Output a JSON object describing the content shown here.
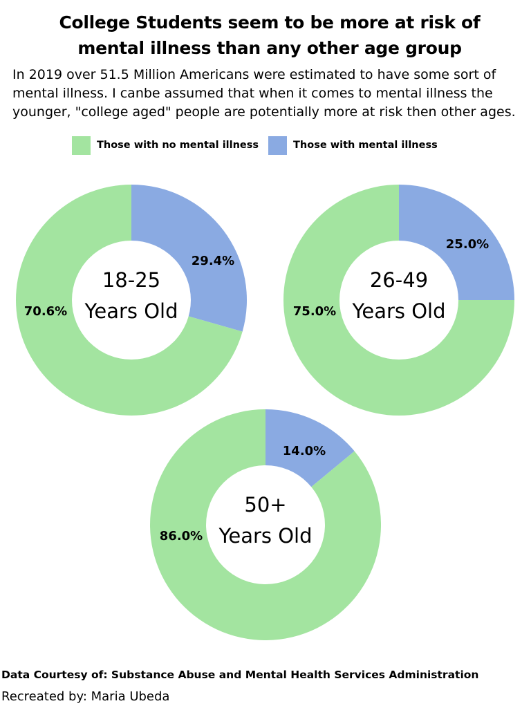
{
  "title": "College Students seem to be more at risk of mental illness than any other age group",
  "subtitle": "In 2019 over 51.5 Million Americans were estimated to have some sort of mental illness. I canbe assumed that when it comes to mental illness the younger, \"college aged\" people are potentially more at risk then other ages.",
  "colors": {
    "no_mental_illness": "#a3e4a0",
    "mental_illness": "#8aaae2",
    "hole": "#ffffff"
  },
  "chart_data": [
    {
      "type": "pie",
      "subtype": "donut",
      "center_label": [
        "18-25",
        "Years Old"
      ],
      "legend": [
        "Those with no mental illness",
        "Those with mental illness"
      ],
      "slices": [
        {
          "name": "Those with mental illness",
          "value": 29.4,
          "label": "29.4%",
          "color": "#8aaae2"
        },
        {
          "name": "Those with no mental illness",
          "value": 70.6,
          "label": "70.6%",
          "color": "#a3e4a0"
        }
      ]
    },
    {
      "type": "pie",
      "subtype": "donut",
      "center_label": [
        "26-49",
        "Years Old"
      ],
      "legend": [
        "Those with no mental illness",
        "Those with mental illness"
      ],
      "slices": [
        {
          "name": "Those with mental illness",
          "value": 25.0,
          "label": "25.0%",
          "color": "#8aaae2"
        },
        {
          "name": "Those with no mental illness",
          "value": 75.0,
          "label": "75.0%",
          "color": "#a3e4a0"
        }
      ]
    },
    {
      "type": "pie",
      "subtype": "donut",
      "center_label": [
        "50+",
        "Years Old"
      ],
      "legend": [
        "Those with no mental illness",
        "Those with mental illness"
      ],
      "slices": [
        {
          "name": "Those with mental illness",
          "value": 14.0,
          "label": "14.0%",
          "color": "#8aaae2"
        },
        {
          "name": "Those with no mental illness",
          "value": 86.0,
          "label": "86.0%",
          "color": "#a3e4a0"
        }
      ]
    }
  ],
  "legend": {
    "items": [
      {
        "label": "Those with no mental illness",
        "color": "#a3e4a0"
      },
      {
        "label": "Those with mental illness",
        "color": "#8aaae2"
      }
    ]
  },
  "footer": {
    "source": "Data Courtesy of: Substance Abuse and Mental Health Services Administration",
    "credit": "Recreated by: Maria Ubeda"
  }
}
